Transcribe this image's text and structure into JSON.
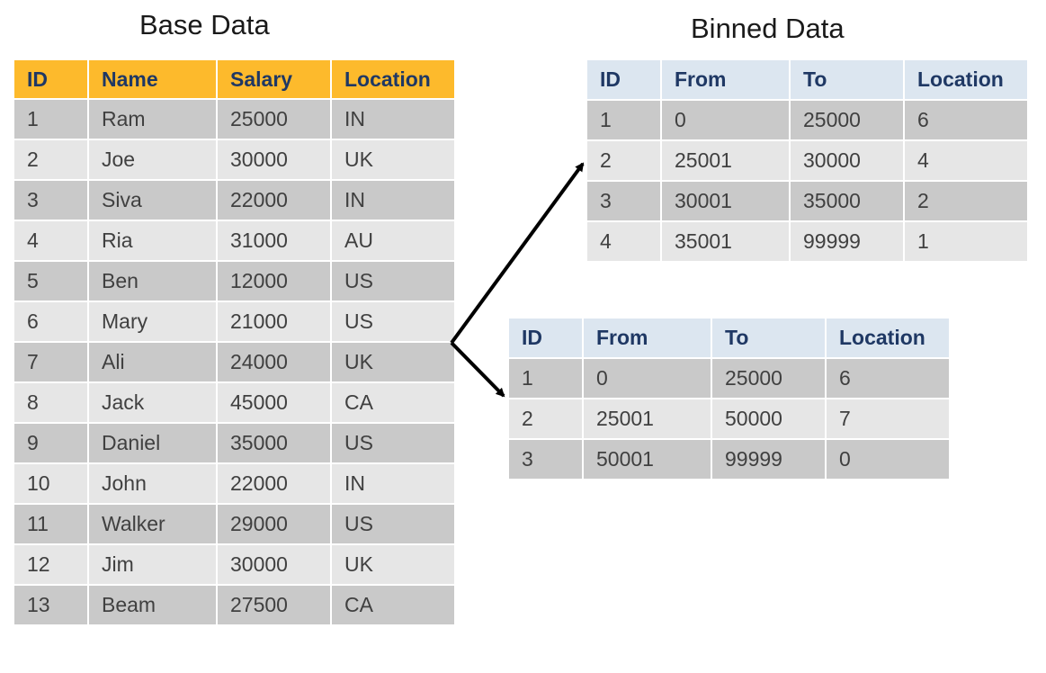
{
  "base": {
    "title": "Base Data",
    "columns": [
      "ID",
      "Name",
      "Salary",
      "Location"
    ],
    "rows": [
      [
        "1",
        "Ram",
        "25000",
        "IN"
      ],
      [
        "2",
        "Joe",
        "30000",
        "UK"
      ],
      [
        "3",
        "Siva",
        "22000",
        "IN"
      ],
      [
        "4",
        "Ria",
        "31000",
        "AU"
      ],
      [
        "5",
        "Ben",
        "12000",
        "US"
      ],
      [
        "6",
        "Mary",
        "21000",
        "US"
      ],
      [
        "7",
        "Ali",
        "24000",
        "UK"
      ],
      [
        "8",
        "Jack",
        "45000",
        "CA"
      ],
      [
        "9",
        "Daniel",
        "35000",
        "US"
      ],
      [
        "10",
        "John",
        "22000",
        "IN"
      ],
      [
        "11",
        "Walker",
        "29000",
        "US"
      ],
      [
        "12",
        "Jim",
        "30000",
        "UK"
      ],
      [
        "13",
        "Beam",
        "27500",
        "CA"
      ]
    ]
  },
  "binned": {
    "title": "Binned Data",
    "table1": {
      "columns": [
        "ID",
        "From",
        "To",
        "Location"
      ],
      "rows": [
        [
          "1",
          "0",
          "25000",
          "6"
        ],
        [
          "2",
          "25001",
          "30000",
          "4"
        ],
        [
          "3",
          "30001",
          "35000",
          "2"
        ],
        [
          "4",
          "35001",
          "99999",
          "1"
        ]
      ]
    },
    "table2": {
      "columns": [
        "ID",
        "From",
        "To",
        "Location"
      ],
      "rows": [
        [
          "1",
          "0",
          "25000",
          "6"
        ],
        [
          "2",
          "25001",
          "50000",
          "7"
        ],
        [
          "3",
          "50001",
          "99999",
          "0"
        ]
      ]
    }
  },
  "colors": {
    "base_header": "#fdba2c",
    "bin_header": "#dce6f0",
    "header_text": "#1f3864",
    "row_dark": "#c9c9c9",
    "row_light": "#e6e6e6"
  }
}
